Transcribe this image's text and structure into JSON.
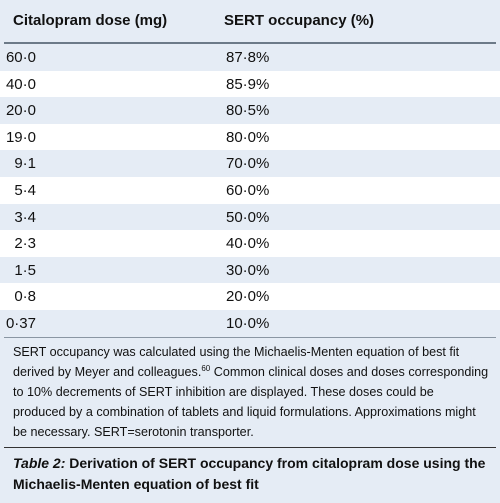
{
  "table": {
    "headers": [
      "Citalopram dose (mg)",
      "SERT occupancy (%)"
    ],
    "rows": [
      [
        "60·0",
        "87·8%"
      ],
      [
        "40·0",
        "85·9%"
      ],
      [
        "20·0",
        "80·5%"
      ],
      [
        "19·0",
        "80·0%"
      ],
      [
        "9·1",
        "70·0%"
      ],
      [
        "5·4",
        "60·0%"
      ],
      [
        "3·4",
        "50·0%"
      ],
      [
        "2·3",
        "40·0%"
      ],
      [
        "1·5",
        "30·0%"
      ],
      [
        "0·8",
        "20·0%"
      ],
      [
        "0·37",
        "10·0%"
      ]
    ]
  },
  "footnote": {
    "before_ref": "SERT occupancy was calculated using the Michaelis-Menten equation of best fit derived by Meyer and colleagues.",
    "ref": "60",
    "after_ref": " Common clinical doses and doses corresponding to 10% decrements of SERT inhibition are displayed. These doses could be produced by a combination of tablets and liquid formulations. Approximations might be necessary. SERT=serotonin transporter."
  },
  "caption": {
    "label": "Table 2:",
    "text": " Derivation of SERT occupancy from citalopram dose using the Michaelis-Menten equation of best fit"
  }
}
